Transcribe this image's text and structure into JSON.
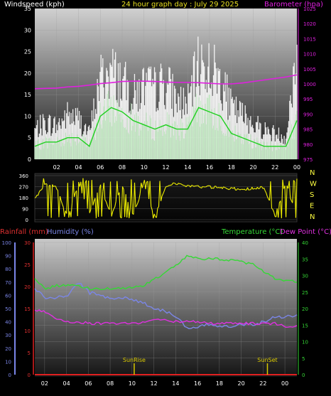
{
  "header": {
    "windspeed_label": "Windspeed (kph)",
    "graph_title": "24 hour graph day : July 29 2025",
    "barometer_label": "Barometer (hpa)"
  },
  "lower_header": {
    "rainfall_label": "Rainfall (mm)",
    "humidity_label": "Humidity (%)",
    "temperature_label": "Temperature (°C)",
    "dewpoint_label": "Dew Point (°C)"
  },
  "colors": {
    "wind_gust": "#ffffff",
    "wind_avg": "#1fd01f",
    "barometer": "#e020e0",
    "direction": "#f0f000",
    "temperature": "#35d835",
    "dewpoint": "#e030e0",
    "humidity": "#7b86e8",
    "rainfall": "#e02020",
    "sun_marker": "#d8c800"
  },
  "chart_data": [
    {
      "type": "line",
      "title": "24 hour graph day : July 29 2025",
      "xlabel": "",
      "x_ticks": [
        "02",
        "04",
        "06",
        "08",
        "10",
        "12",
        "14",
        "16",
        "18",
        "20",
        "22",
        "00"
      ],
      "y_left": {
        "label": "Windspeed (kph)",
        "range": [
          0,
          35
        ],
        "ticks": [
          0,
          5,
          10,
          15,
          20,
          25,
          30,
          35
        ]
      },
      "y_right": {
        "label": "Barometer (hpa)",
        "range": [
          975,
          1025
        ],
        "ticks": [
          975,
          980,
          985,
          990,
          995,
          1000,
          1005,
          1010,
          1015,
          1020,
          1025
        ]
      },
      "x": [
        0,
        1,
        2,
        3,
        4,
        5,
        6,
        7,
        8,
        9,
        10,
        11,
        12,
        13,
        14,
        15,
        16,
        17,
        18,
        19,
        20,
        21,
        22,
        23,
        24
      ],
      "series": [
        {
          "name": "Windspeed (kph)",
          "role": "gust",
          "values": [
            8,
            10,
            9,
            12,
            11,
            7,
            22,
            24,
            21,
            17,
            20,
            19,
            21,
            16,
            15,
            26,
            25,
            22,
            14,
            12,
            10,
            8,
            7,
            6,
            29
          ]
        },
        {
          "name": "Windspeed (kph)",
          "role": "average",
          "values": [
            3,
            4,
            4,
            5,
            5,
            3,
            10,
            12,
            11,
            9,
            8,
            7,
            8,
            7,
            7,
            12,
            11,
            10,
            6,
            5,
            4,
            3,
            3,
            3,
            9
          ]
        },
        {
          "name": "Barometer (hpa)",
          "values": [
            998.4,
            998.5,
            998.6,
            999.0,
            999.2,
            999.6,
            1000.1,
            1000.4,
            1000.8,
            1000.9,
            1000.9,
            1000.8,
            1000.6,
            1000.5,
            1000.5,
            1000.4,
            1000.2,
            1000.0,
            1000.0,
            1000.3,
            1000.8,
            1001.3,
            1001.8,
            1002.3,
            1003.0
          ]
        }
      ]
    },
    {
      "type": "line",
      "title": "",
      "x_ticks": [],
      "y_left": {
        "label": "",
        "range": [
          0,
          360
        ],
        "ticks": [
          0,
          90,
          180,
          270,
          360
        ]
      },
      "y_right_compass": [
        "N",
        "W",
        "S",
        "E",
        "N"
      ],
      "x": [
        0,
        1,
        2,
        3,
        4,
        5,
        6,
        7,
        8,
        9,
        10,
        11,
        12,
        13,
        14,
        15,
        16,
        17,
        18,
        19,
        20,
        21,
        22,
        23,
        24
      ],
      "series": [
        {
          "name": "Wind direction",
          "values": [
            170,
            300,
            260,
            20,
            300,
            40,
            280,
            30,
            290,
            30,
            300,
            20,
            280,
            300,
            275,
            270,
            265,
            260,
            255,
            250,
            255,
            265,
            30,
            300,
            20
          ]
        }
      ]
    },
    {
      "type": "line",
      "title": "",
      "x_ticks": [
        "02",
        "04",
        "06",
        "08",
        "10",
        "12",
        "14",
        "16",
        "18",
        "20",
        "22",
        "00"
      ],
      "y_left_humidity": {
        "label": "Humidity (%)",
        "range": [
          0,
          100
        ],
        "ticks": [
          0,
          10,
          20,
          30,
          40,
          50,
          60,
          70,
          80,
          90,
          100
        ]
      },
      "y_left_rain": {
        "label": "Rainfall (mm)",
        "range": [
          0,
          30
        ],
        "ticks": [
          0,
          5,
          10,
          15,
          20,
          25,
          30
        ]
      },
      "y_right": {
        "label": "Temperature (°C)",
        "range": [
          0,
          40
        ],
        "ticks": [
          0,
          5,
          10,
          15,
          20,
          25,
          30,
          35,
          40
        ]
      },
      "annotations": [
        {
          "label": "SunRise",
          "x": 9.1
        },
        {
          "label": "SunSet",
          "x": 21.3
        }
      ],
      "x": [
        0,
        1,
        2,
        3,
        4,
        5,
        6,
        7,
        8,
        9,
        10,
        11,
        12,
        13,
        14,
        15,
        16,
        17,
        18,
        19,
        20,
        21,
        22,
        23,
        24
      ],
      "series": [
        {
          "name": "Temperature (°C)",
          "values": [
            29,
            26,
            27,
            27,
            27,
            26,
            26,
            26,
            26,
            26.5,
            27,
            29,
            31,
            33,
            36,
            35,
            35,
            35,
            34.5,
            34,
            33.5,
            31,
            29,
            28.5,
            28
          ]
        },
        {
          "name": "Dew Point (°C)",
          "values": [
            19.5,
            19,
            17,
            16,
            16,
            15.5,
            15.5,
            15.5,
            15.5,
            15.5,
            16,
            16.5,
            16.5,
            16,
            16,
            16,
            15.5,
            15.5,
            15.5,
            15.5,
            15.5,
            15.5,
            15.5,
            14.5,
            15
          ]
        },
        {
          "name": "Humidity (%)",
          "values": [
            65,
            58,
            58,
            60,
            70,
            62,
            60,
            58,
            58,
            57,
            54,
            50,
            48,
            44,
            34,
            36,
            38,
            37,
            37,
            38,
            38,
            40,
            44,
            44,
            45
          ]
        },
        {
          "name": "Rainfall (mm)",
          "values": [
            0,
            0,
            0,
            0,
            0,
            0,
            0,
            0,
            0,
            0,
            0,
            0,
            0,
            0,
            0,
            0,
            0,
            0,
            0,
            0,
            0,
            0,
            0,
            0,
            0
          ]
        }
      ]
    }
  ]
}
